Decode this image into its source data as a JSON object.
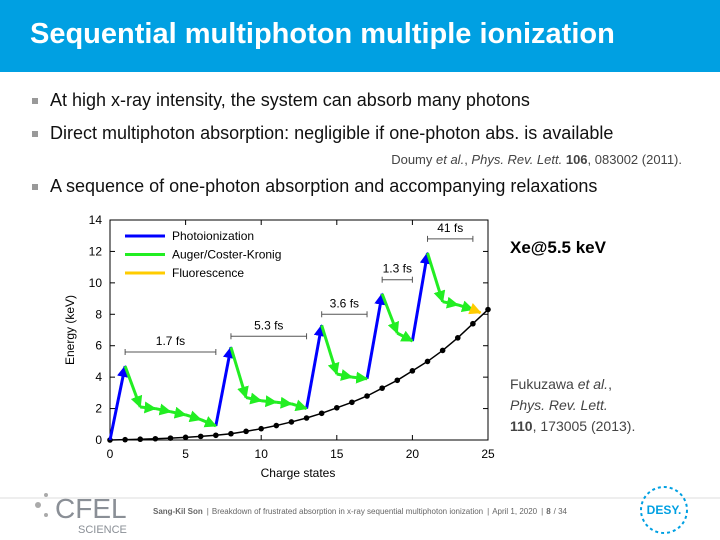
{
  "header": {
    "title": "Sequential multiphoton multiple ionization"
  },
  "bullets": [
    "At high x-ray intensity, the system can absorb many photons",
    "Direct multiphoton absorption: negligible if one-photon abs. is available",
    "A sequence of one-photon absorption and accompanying relaxations"
  ],
  "reference": [
    {
      "text": "Doumy "
    },
    {
      "text": "et al.",
      "style": "italic"
    },
    {
      "text": ", "
    },
    {
      "text": "Phys. Rev. Lett.",
      "style": "italic"
    },
    {
      "text": " "
    },
    {
      "text": "106",
      "style": "bold"
    },
    {
      "text": ", 083002 (2011)."
    }
  ],
  "chart_data": {
    "type": "line",
    "xlabel": "Charge states",
    "ylabel": "Energy (keV)",
    "xlim": [
      0,
      25
    ],
    "xticks": [
      0,
      5,
      10,
      15,
      20,
      25
    ],
    "ylim": [
      0,
      14
    ],
    "yticks": [
      0,
      2,
      4,
      6,
      8,
      10,
      12,
      14
    ],
    "series": [
      {
        "color": "#000000",
        "markers": true,
        "x": [
          0,
          1,
          2,
          3,
          4,
          5,
          6,
          7,
          8,
          9,
          10,
          11,
          12,
          13,
          14,
          15,
          16,
          17,
          18,
          19,
          20,
          21,
          22,
          23,
          24,
          25
        ],
        "values": [
          0,
          0.02,
          0.05,
          0.08,
          0.12,
          0.17,
          0.23,
          0.3,
          0.4,
          0.55,
          0.72,
          0.92,
          1.15,
          1.4,
          1.7,
          2.05,
          2.4,
          2.8,
          3.3,
          3.8,
          4.4,
          5.0,
          5.7,
          6.5,
          7.4,
          8.3
        ]
      },
      {
        "name": "Photoionization",
        "color": "#0000ff",
        "arrows": true,
        "x": [
          0,
          1,
          null,
          7,
          8,
          null,
          13,
          14,
          null,
          17,
          18,
          null,
          20,
          21
        ],
        "values": [
          0,
          4.7,
          null,
          0.9,
          5.9,
          null,
          2.0,
          7.3,
          null,
          3.9,
          9.3,
          null,
          6.3,
          11.9
        ]
      },
      {
        "name": "Auger/Coster-Kronig",
        "color": "#22ee22",
        "arrows": true,
        "x": [
          1,
          2,
          3,
          4,
          5,
          6,
          7,
          null,
          8,
          9,
          10,
          11,
          12,
          13,
          null,
          14,
          15,
          16,
          17,
          null,
          18,
          19,
          20,
          null,
          21,
          22,
          23,
          24
        ],
        "values": [
          4.7,
          2.1,
          2.0,
          1.8,
          1.6,
          1.3,
          0.9,
          null,
          5.9,
          2.7,
          2.5,
          2.4,
          2.3,
          2.0,
          null,
          7.3,
          4.2,
          4.0,
          3.9,
          null,
          9.3,
          6.8,
          6.3,
          null,
          11.9,
          8.8,
          8.6,
          8.3
        ]
      },
      {
        "name": "Fluorescence",
        "color": "#ffcc00",
        "arrows": true,
        "x": [
          24,
          24.5
        ],
        "values": [
          8.3,
          8.1
        ]
      }
    ],
    "annotations": [
      {
        "label": "1.7 fs",
        "span": [
          1,
          7
        ],
        "y": 5.6
      },
      {
        "label": "5.3 fs",
        "span": [
          8,
          13
        ],
        "y": 6.6
      },
      {
        "label": "3.6 fs",
        "span": [
          14,
          17
        ],
        "y": 8.0
      },
      {
        "label": "1.3 fs",
        "span": [
          18,
          20
        ],
        "y": 10.2
      },
      {
        "label": "41 fs",
        "span": [
          21,
          24
        ],
        "y": 12.8
      }
    ]
  },
  "side": {
    "system": "Xe@5.5 keV",
    "citation": [
      [
        {
          "text": "Fukuzawa "
        },
        {
          "text": "et al.",
          "style": "italic"
        },
        {
          "text": ","
        }
      ],
      [
        {
          "text": "Phys. Rev. Lett.",
          "style": "italic"
        }
      ],
      [
        {
          "text": "110",
          "style": "bold"
        },
        {
          "text": ", 173005 (2013)."
        }
      ]
    ]
  },
  "footer": {
    "author": "Sang-Kil Son",
    "talk": "Breakdown of frustrated absorption in x-ray sequential multiphoton ionization",
    "date": "April 1, 2020",
    "page": "8",
    "total": "/ 34",
    "logo_left": [
      "CFEL",
      "SCIENCE"
    ],
    "logo_right": "DESY."
  }
}
